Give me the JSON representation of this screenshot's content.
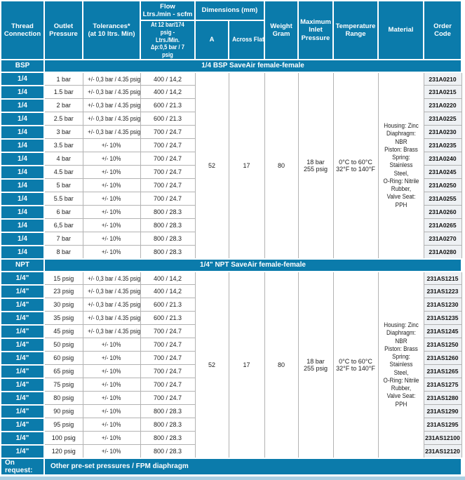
{
  "accent_color": "#0b7bab",
  "grid_color": "#b3b3b3",
  "code_cell_color": "#eef1f4",
  "bottom_strip_color": "#accfe2",
  "table": {
    "header": {
      "thread": "Thread\nConnection",
      "outlet": "Outlet\nPressure",
      "tolerances": "Tolerances*\n(at 10 ltrs. Min)",
      "flow": "Flow\nLtrs./min - scfm",
      "flow_sub": "At 12 bar/174 psig -\nLtrs./Min.\nΔp:0,5 bar / 7 psig",
      "dimensions": "Dimensions (mm)",
      "dim_a": "A",
      "dim_across": "Across Flat",
      "weight": "Weight\nGram",
      "max_inlet": "Maximum\nInlet\nPressure",
      "temperature": "Temperature\nRange",
      "material": "Material",
      "order": "Order Code"
    },
    "sections": [
      {
        "label": "BSP",
        "band": "1/4 BSP SaveAir female-female",
        "shared": {
          "a": "52",
          "across_flat": "17",
          "weight": "80",
          "max_inlet": "18 bar\n255 psig",
          "temperature": "0°C to 60°C\n32°F to 140°F",
          "material": "Housing: Zinc\nDiaphragm: NBR\nPiston: Brass\nSpring: Stainless\nSteel,\nO-Ring: Nitrile\nRubber,\nValve Seat: PPH"
        },
        "rows": [
          {
            "thread": "1/4",
            "pressure": "1 bar",
            "tolerance": "+/- 0,3 bar / 4.35 psig",
            "flow": "400 / 14,2",
            "code": "231A0210"
          },
          {
            "thread": "1/4",
            "pressure": "1.5 bar",
            "tolerance": "+/- 0,3 bar / 4.35 psig",
            "flow": "400 / 14,2",
            "code": "231A0215"
          },
          {
            "thread": "1/4",
            "pressure": "2 bar",
            "tolerance": "+/- 0,3 bar / 4.35 psig",
            "flow": "600 / 21.3",
            "code": "231A0220"
          },
          {
            "thread": "1/4",
            "pressure": "2.5 bar",
            "tolerance": "+/- 0,3 bar / 4.35 psig",
            "flow": "600 / 21.3",
            "code": "231A0225"
          },
          {
            "thread": "1/4",
            "pressure": "3 bar",
            "tolerance": "+/- 0,3 bar / 4.35 psig",
            "flow": "700 / 24.7",
            "code": "231A0230"
          },
          {
            "thread": "1/4",
            "pressure": "3.5 bar",
            "tolerance": "+/- 10%",
            "flow": "700 / 24.7",
            "code": "231A0235"
          },
          {
            "thread": "1/4",
            "pressure": "4 bar",
            "tolerance": "+/- 10%",
            "flow": "700 / 24.7",
            "code": "231A0240"
          },
          {
            "thread": "1/4",
            "pressure": "4.5 bar",
            "tolerance": "+/- 10%",
            "flow": "700 / 24.7",
            "code": "231A0245"
          },
          {
            "thread": "1/4",
            "pressure": "5 bar",
            "tolerance": "+/- 10%",
            "flow": "700 / 24.7",
            "code": "231A0250"
          },
          {
            "thread": "1/4",
            "pressure": "5.5 bar",
            "tolerance": "+/- 10%",
            "flow": "700 / 24.7",
            "code": "231A0255"
          },
          {
            "thread": "1/4",
            "pressure": "6 bar",
            "tolerance": "+/- 10%",
            "flow": "800 / 28.3",
            "code": "231A0260"
          },
          {
            "thread": "1/4",
            "pressure": "6,5 bar",
            "tolerance": "+/- 10%",
            "flow": "800 / 28.3",
            "code": "231A0265"
          },
          {
            "thread": "1/4",
            "pressure": "7 bar",
            "tolerance": "+/- 10%",
            "flow": "800 / 28.3",
            "code": "231A0270"
          },
          {
            "thread": "1/4",
            "pressure": "8 bar",
            "tolerance": "+/- 10%",
            "flow": "800 / 28.3",
            "code": "231A0280"
          }
        ]
      },
      {
        "label": "NPT",
        "band": "1/4\" NPT SaveAir female-female",
        "shared": {
          "a": "52",
          "across_flat": "17",
          "weight": "80",
          "max_inlet": "18 bar\n255 psig",
          "temperature": "0°C to 60°C\n32°F to 140°F",
          "material": "Housing: Zinc\nDiaphragm: NBR\nPiston: Brass\nSpring: Stainless\nSteel,\nO-Ring: Nitrile\nRubber,\nValve Seat: PPH"
        },
        "rows": [
          {
            "thread": "1/4\"",
            "pressure": "15 psig",
            "tolerance": "+/- 0,3 bar / 4.35 psig",
            "flow": "400 / 14,2",
            "code": "231AS1215"
          },
          {
            "thread": "1/4\"",
            "pressure": "23 psig",
            "tolerance": "+/- 0,3 bar / 4.35 psig",
            "flow": "400 / 14,2",
            "code": "231AS1223"
          },
          {
            "thread": "1/4\"",
            "pressure": "30 psig",
            "tolerance": "+/- 0,3 bar / 4.35 psig",
            "flow": "600 / 21.3",
            "code": "231AS1230"
          },
          {
            "thread": "1/4\"",
            "pressure": "35 psig",
            "tolerance": "+/- 0,3 bar / 4.35 psig",
            "flow": "600 / 21.3",
            "code": "231AS1235"
          },
          {
            "thread": "1/4\"",
            "pressure": "45 psig",
            "tolerance": "+/- 0,3 bar / 4.35 psig",
            "flow": "700 / 24.7",
            "code": "231AS1245"
          },
          {
            "thread": "1/4\"",
            "pressure": "50 psig",
            "tolerance": "+/- 10%",
            "flow": "700 / 24.7",
            "code": "231AS1250"
          },
          {
            "thread": "1/4\"",
            "pressure": "60 psig",
            "tolerance": "+/- 10%",
            "flow": "700 / 24.7",
            "code": "231AS1260"
          },
          {
            "thread": "1/4\"",
            "pressure": "65 psig",
            "tolerance": "+/- 10%",
            "flow": "700 / 24.7",
            "code": "231AS1265"
          },
          {
            "thread": "1/4\"",
            "pressure": "75 psig",
            "tolerance": "+/- 10%",
            "flow": "700 / 24.7",
            "code": "231AS1275"
          },
          {
            "thread": "1/4\"",
            "pressure": "80 psig",
            "tolerance": "+/- 10%",
            "flow": "700 / 24.7",
            "code": "231AS1280"
          },
          {
            "thread": "1/4\"",
            "pressure": "90 psig",
            "tolerance": "+/- 10%",
            "flow": "800 / 28.3",
            "code": "231AS1290"
          },
          {
            "thread": "1/4\"",
            "pressure": "95 psig",
            "tolerance": "+/- 10%",
            "flow": "800 / 28.3",
            "code": "231AS1295"
          },
          {
            "thread": "1/4\"",
            "pressure": "100 psig",
            "tolerance": "+/- 10%",
            "flow": "800 / 28.3",
            "code": "231AS12100"
          },
          {
            "thread": "1/4\"",
            "pressure": "120 psig",
            "tolerance": "+/- 10%",
            "flow": "800 / 28.3",
            "code": "231AS12120"
          }
        ]
      }
    ],
    "footer": {
      "label": "On request:",
      "text": "Other pre-set pressures / FPM diaphragm"
    }
  }
}
